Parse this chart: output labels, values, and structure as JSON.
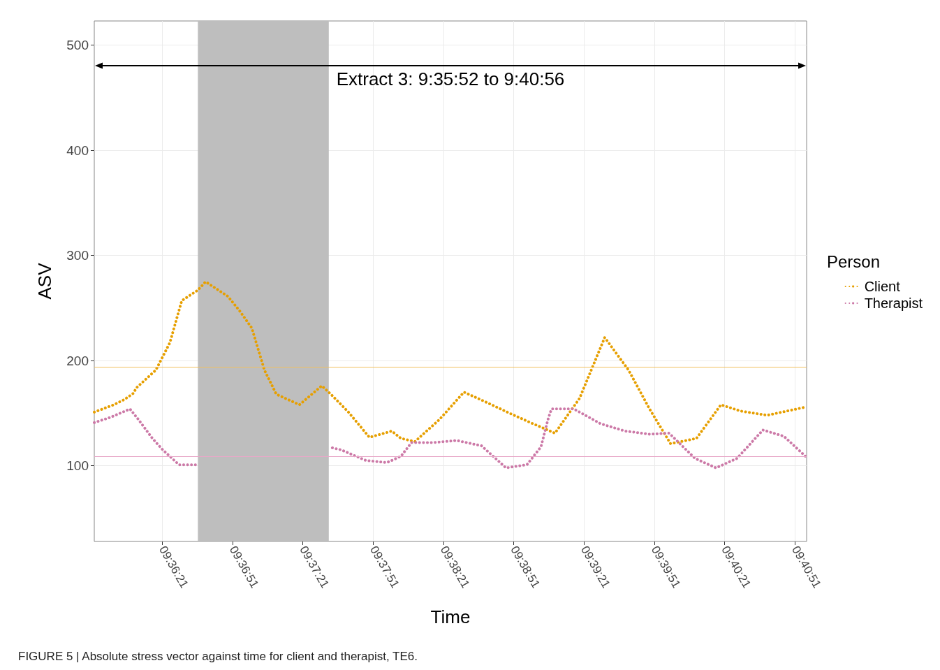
{
  "chart_data": {
    "type": "line",
    "xlabel": "Time",
    "ylabel": "ASV",
    "legend_title": "Person",
    "xlim": [
      9.59778,
      9.68222
    ],
    "ylim": [
      28,
      523
    ],
    "xticks": [
      {
        "value": 9.60583,
        "label": "09:36:21"
      },
      {
        "value": 9.61417,
        "label": "09:36:51"
      },
      {
        "value": 9.6225,
        "label": "09:37:21"
      },
      {
        "value": 9.63083,
        "label": "09:37:51"
      },
      {
        "value": 9.63917,
        "label": "09:38:21"
      },
      {
        "value": 9.6475,
        "label": "09:38:51"
      },
      {
        "value": 9.65583,
        "label": "09:39:21"
      },
      {
        "value": 9.66417,
        "label": "09:39:51"
      },
      {
        "value": 9.6725,
        "label": "09:40:21"
      },
      {
        "value": 9.68083,
        "label": "09:40:51"
      }
    ],
    "yticks": [
      100,
      200,
      300,
      400,
      500
    ],
    "grid": true,
    "legend": "right",
    "marker": "none",
    "line_style": "dotted",
    "series": [
      {
        "name": "Client",
        "color": "#e69f00",
        "x": [
          9.59778,
          9.6001,
          9.60135,
          9.60243,
          9.60276,
          9.60508,
          9.60674,
          9.60815,
          9.61006,
          9.61098,
          9.61363,
          9.61504,
          9.61645,
          9.61795,
          9.61936,
          9.6221,
          9.62475,
          9.62583,
          9.62791,
          9.6304,
          9.63305,
          9.63413,
          9.63579,
          9.6387,
          9.6416,
          9.64409,
          9.647,
          9.64949,
          9.65239,
          9.6553,
          9.65829,
          9.66111,
          9.6636,
          9.66609,
          9.66916,
          9.67206,
          9.67439,
          9.67754,
          9.68222
        ],
        "values": [
          151,
          158,
          163,
          169,
          174,
          191,
          217,
          257,
          267,
          275,
          261,
          247,
          231,
          191,
          168,
          158,
          176,
          168,
          151,
          127,
          133,
          126,
          123,
          144,
          170,
          161,
          150,
          141,
          131,
          164,
          222,
          191,
          154,
          121,
          126,
          158,
          152,
          148,
          156
        ]
      },
      {
        "name": "Therapist",
        "color": "#cc79a7",
        "x": [
          9.59778,
          9.59969,
          9.60201,
          9.60301,
          9.60467,
          9.60591,
          9.60782,
          9.61006,
          9.618,
          9.626,
          9.62708,
          9.62998,
          9.63247,
          9.63413,
          9.63538,
          9.63787,
          9.64077,
          9.64368,
          9.64658,
          9.64907,
          9.65073,
          9.65156,
          9.65198,
          9.65463,
          9.65779,
          9.66069,
          9.6636,
          9.66592,
          9.66733,
          9.66899,
          9.67148,
          9.67397,
          9.67704,
          9.67953,
          9.68222
        ],
        "values": [
          141,
          146,
          154,
          144,
          126,
          115,
          101,
          101,
          null,
          117,
          115,
          105,
          103,
          109,
          122,
          122,
          124,
          119,
          98,
          101,
          118,
          144,
          154,
          154,
          140,
          133,
          130,
          131,
          120,
          107,
          98,
          107,
          134,
          128,
          108
        ]
      }
    ],
    "ref_lines": [
      {
        "axis": "y",
        "value": 194,
        "color": "#f0c060"
      },
      {
        "axis": "y",
        "value": 109,
        "color": "#e8a8c8"
      }
    ],
    "bands": [
      {
        "axis": "x",
        "from": 9.61006,
        "to": 9.62558,
        "color": "#bebebe"
      }
    ],
    "annotations": [
      "Extract 3: 9:35:52 to 9:40:56",
      "FIGURE 5 | Absolute stress vector against time for client and therapist, TE6."
    ]
  }
}
